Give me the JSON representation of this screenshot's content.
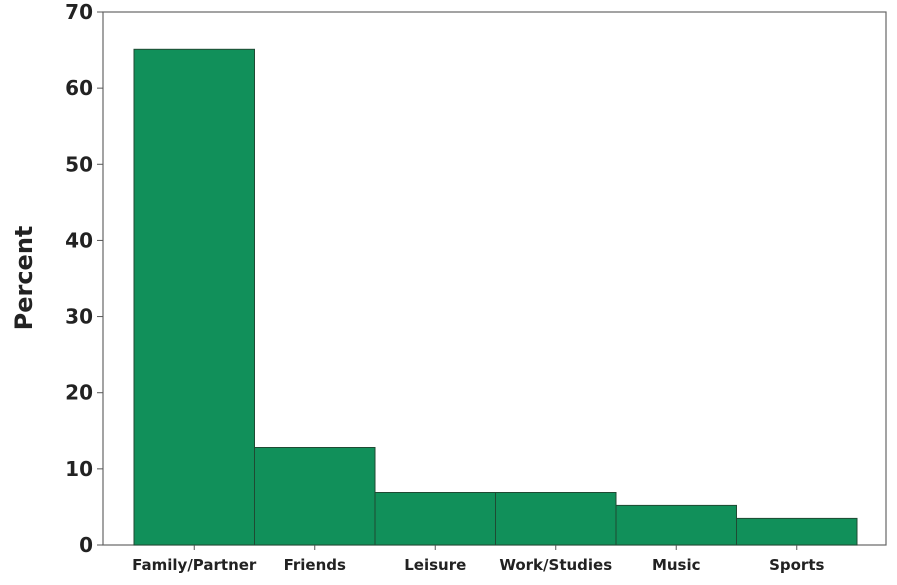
{
  "chart_data": {
    "type": "bar",
    "title": "",
    "xlabel": "",
    "ylabel": "Percent",
    "categories": [
      "Family/Partner",
      "Friends",
      "Leisure",
      "Work/Studies",
      "Music",
      "Sports"
    ],
    "values": [
      65.1,
      12.8,
      6.9,
      6.9,
      5.2,
      3.5
    ],
    "ylim": [
      0,
      70
    ],
    "yticks": [
      0,
      10,
      20,
      30,
      40,
      50,
      60,
      70
    ],
    "grid": false,
    "legend": "none",
    "bar_color": "#11905A",
    "bar_edge_color": "#1f4a33"
  }
}
